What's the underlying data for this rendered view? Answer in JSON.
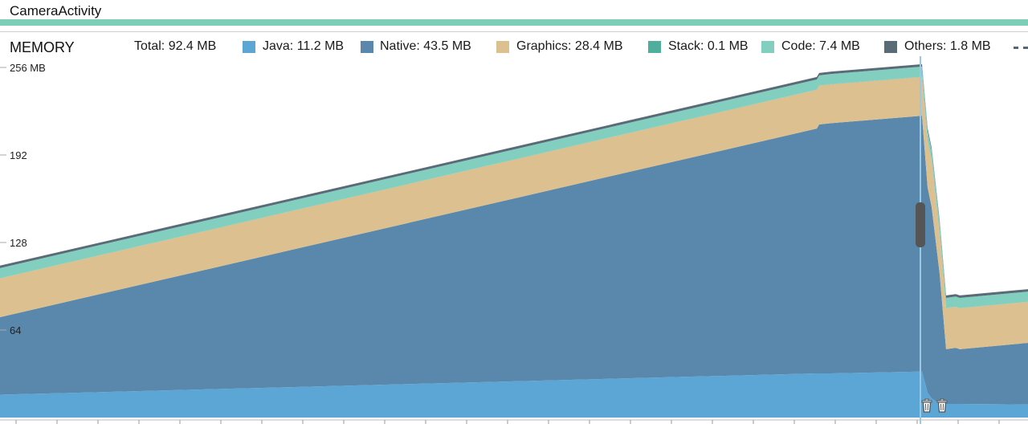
{
  "activity": {
    "label": "CameraActivity"
  },
  "memory": {
    "title": "MEMORY",
    "total": "Total: 92.4 MB",
    "legend": [
      {
        "label": "Java: 11.2 MB",
        "color": "#5ba6d4"
      },
      {
        "label": "Native: 43.5 MB",
        "color": "#5a88ad"
      },
      {
        "label": "Graphics: 28.4 MB",
        "color": "#dcc08f"
      },
      {
        "label": "Stack: 0.1 MB",
        "color": "#4fae9c"
      },
      {
        "label": "Code: 7.4 MB",
        "color": "#82cfbf"
      },
      {
        "label": "Others: 1.8 MB",
        "color": "#5a6b78"
      }
    ],
    "allocated_marker": "dashed-line-icon"
  },
  "chart_data": {
    "type": "area",
    "ylim": [
      0,
      256
    ],
    "y_tick_labels": [
      "256 MB",
      "192",
      "128",
      "64"
    ],
    "y_ticks": [
      256,
      192,
      128,
      64
    ],
    "x": [
      0,
      1017,
      1020,
      1035,
      1148,
      1155,
      1160,
      1170,
      1178,
      1190,
      1195,
      1280
    ],
    "series": [
      {
        "name": "Java",
        "color": "#5ba6d4",
        "values": [
          16.7,
          32.3,
          32.3,
          32.3,
          33.7,
          18.2,
          14,
          10,
          10,
          10,
          10,
          9.6
        ]
      },
      {
        "name": "Native",
        "color": "#5a88ad",
        "values": [
          56.7,
          179,
          182,
          183,
          187,
          150,
          140,
          95,
          40,
          41,
          40,
          45
        ]
      },
      {
        "name": "Graphics",
        "color": "#dcc08f",
        "values": [
          28.4,
          28.4,
          28.4,
          28.4,
          28.4,
          34,
          34,
          30,
          30,
          30,
          30,
          30
        ]
      },
      {
        "name": "Stack",
        "color": "#4fae9c",
        "values": [
          0.1,
          0.1,
          0.1,
          0.1,
          0.1,
          0.1,
          0.1,
          0.1,
          0.1,
          0.1,
          0.1,
          0.1
        ]
      },
      {
        "name": "Code",
        "color": "#82cfbf",
        "values": [
          7.4,
          7.4,
          7.4,
          7.4,
          7.4,
          7.4,
          7.4,
          7.4,
          7.4,
          7.4,
          7.4,
          7.4
        ]
      },
      {
        "name": "Others",
        "color": "#5a6b78",
        "values": [
          1.8,
          1.8,
          1.8,
          1.8,
          1.8,
          1.8,
          1.8,
          1.8,
          1.8,
          1.8,
          1.8,
          1.8
        ]
      }
    ],
    "events": [
      "gc-event",
      "gc-event"
    ],
    "grid": false,
    "legend_position": "top"
  }
}
